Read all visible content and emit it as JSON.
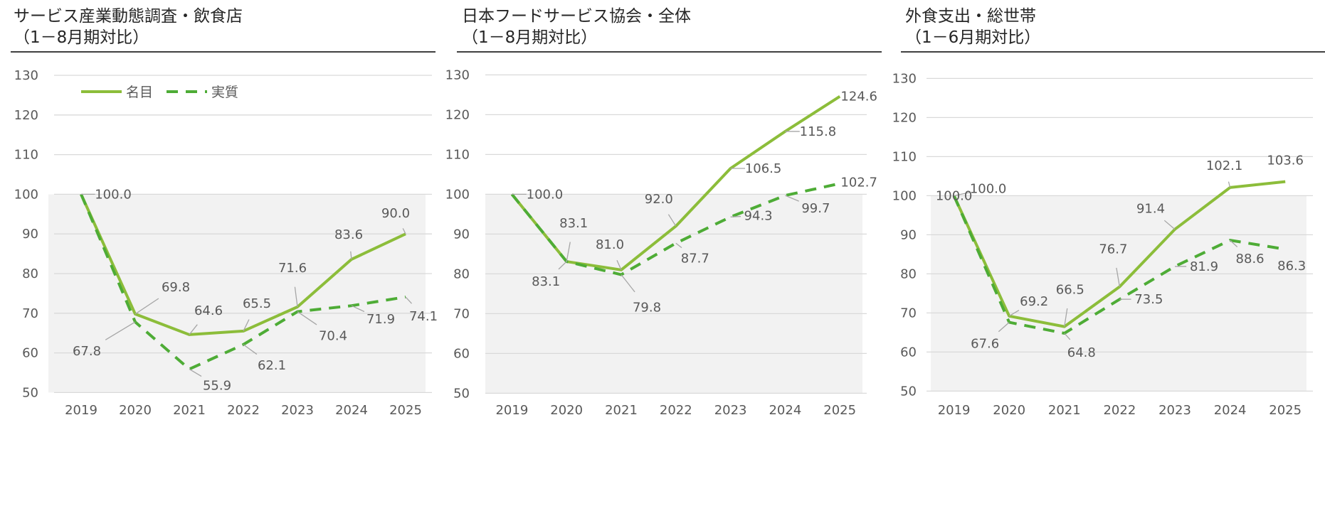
{
  "colors": {
    "nominal": "#8cbd3a",
    "real": "#4eac36",
    "plot_background": "#f2f2f2",
    "grid": "#d9d9d9",
    "leader": "#a6a6a6"
  },
  "chart_data": [
    {
      "type": "line",
      "title": "サービス産業動態調査・飲食店",
      "subtitle": "（1－8月期対比）",
      "categories": [
        "2019",
        "2020",
        "2021",
        "2022",
        "2023",
        "2024",
        "2025"
      ],
      "ylim": [
        50,
        130
      ],
      "yticks": [
        50,
        60,
        70,
        80,
        90,
        100,
        110,
        120,
        130
      ],
      "grid": true,
      "shaded_range": [
        50,
        100
      ],
      "legend": {
        "position": "top-left",
        "entries": [
          {
            "name": "名目",
            "style": "solid"
          },
          {
            "name": "実質",
            "style": "dashed"
          }
        ]
      },
      "series": [
        {
          "name": "名目",
          "style": "solid",
          "values": [
            100.0,
            69.8,
            64.6,
            65.5,
            71.6,
            83.6,
            90.0
          ]
        },
        {
          "name": "実質",
          "style": "dashed",
          "values": [
            100.0,
            67.8,
            55.9,
            62.1,
            70.4,
            71.9,
            74.1
          ]
        }
      ]
    },
    {
      "type": "line",
      "title": "日本フードサービス協会・全体",
      "subtitle": "（1－8月期対比）",
      "categories": [
        "2019",
        "2020",
        "2021",
        "2022",
        "2023",
        "2024",
        "2025"
      ],
      "ylim": [
        50,
        130
      ],
      "yticks": [
        50,
        60,
        70,
        80,
        90,
        100,
        110,
        120,
        130
      ],
      "grid": true,
      "shaded_range": [
        50,
        100
      ],
      "series": [
        {
          "name": "名目",
          "style": "solid",
          "values": [
            100.0,
            83.1,
            81.0,
            92.0,
            106.5,
            115.8,
            124.6
          ]
        },
        {
          "name": "実質",
          "style": "dashed",
          "values": [
            100.0,
            83.1,
            79.8,
            87.7,
            94.3,
            99.7,
            102.7
          ]
        }
      ]
    },
    {
      "type": "line",
      "title": "外食支出・総世帯",
      "subtitle": "（1－6月期対比）",
      "categories": [
        "2019",
        "2020",
        "2021",
        "2022",
        "2023",
        "2024",
        "2025"
      ],
      "ylim": [
        50,
        130
      ],
      "yticks": [
        50,
        60,
        70,
        80,
        90,
        100,
        110,
        120,
        130
      ],
      "grid": true,
      "shaded_range": [
        50,
        100
      ],
      "series": [
        {
          "name": "名目",
          "style": "solid",
          "values": [
            100.0,
            69.2,
            66.5,
            76.7,
            91.4,
            102.1,
            103.6
          ]
        },
        {
          "name": "実質",
          "style": "dashed",
          "values": [
            100.0,
            67.6,
            64.8,
            73.5,
            81.9,
            88.6,
            86.3
          ]
        }
      ]
    }
  ]
}
